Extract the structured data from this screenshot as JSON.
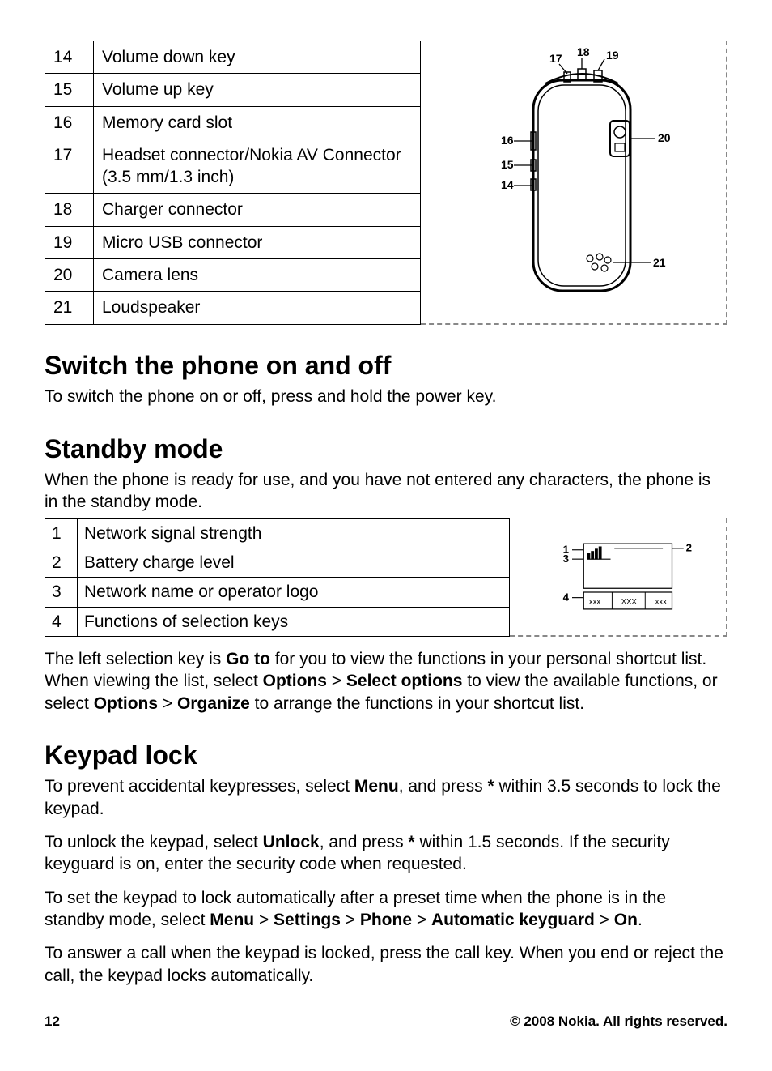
{
  "parts_table": {
    "rows": [
      {
        "num": "14",
        "label": "Volume down key"
      },
      {
        "num": "15",
        "label": "Volume up key"
      },
      {
        "num": "16",
        "label": "Memory card slot"
      },
      {
        "num": "17",
        "label": "Headset connector/Nokia AV Connector (3.5 mm/1.3 inch)"
      },
      {
        "num": "18",
        "label": "Charger connector"
      },
      {
        "num": "19",
        "label": "Micro USB connector"
      },
      {
        "num": "20",
        "label": "Camera lens"
      },
      {
        "num": "21",
        "label": "Loudspeaker"
      }
    ]
  },
  "phone_diagram": {
    "callouts": [
      "14",
      "15",
      "16",
      "17",
      "18",
      "19",
      "20",
      "21"
    ]
  },
  "section_switch": {
    "heading": "Switch the phone on and off",
    "body": "To switch the phone on or off, press and hold the power key."
  },
  "section_standby": {
    "heading": "Standby mode",
    "intro": "When the phone is ready for use, and you have not entered any characters, the phone is in the standby mode.",
    "rows": [
      {
        "num": "1",
        "label": "Network signal strength"
      },
      {
        "num": "2",
        "label": "Battery charge level"
      },
      {
        "num": "3",
        "label": "Network name or operator logo"
      },
      {
        "num": "4",
        "label": "Functions of selection keys"
      }
    ],
    "diagram_labels": {
      "l1": "1",
      "l2": "2",
      "l3": "3",
      "l4": "4"
    },
    "after_p1_pre": "The left selection key is ",
    "goto": "Go to",
    "after_p1_mid1": " for you to view the functions in your personal shortcut list. When viewing the list, select ",
    "options": "Options",
    "gt": " > ",
    "selectoptions": "Select options",
    "after_p1_mid2": " to view the available functions, or select ",
    "organize": "Organize",
    "after_p1_end": " to arrange the functions in your shortcut list."
  },
  "section_keypad": {
    "heading": "Keypad lock",
    "p1_pre": "To prevent accidental keypresses, select ",
    "menu": "Menu",
    "p1_mid": ", and press ",
    "star": "*",
    "p1_end": " within 3.5 seconds to lock the keypad.",
    "p2_pre": "To unlock the keypad, select ",
    "unlock": "Unlock",
    "p2_mid": ", and press ",
    "p2_end": " within 1.5 seconds. If the security keyguard is on, enter the security code when requested.",
    "p3_pre": "To set the keypad to lock automatically after a preset time when the phone is in the standby mode, select ",
    "settings": "Settings",
    "phone": "Phone",
    "autokey": "Automatic keyguard",
    "on": "On",
    "p3_end": ".",
    "p4": "To answer a call when the keypad is locked, press the call key. When you end or reject the call, the keypad locks automatically."
  },
  "footer": {
    "page": "12",
    "copyright": "© 2008 Nokia. All rights reserved."
  },
  "colors": {
    "text": "#000000",
    "bg": "#ffffff",
    "dash": "#888888"
  }
}
